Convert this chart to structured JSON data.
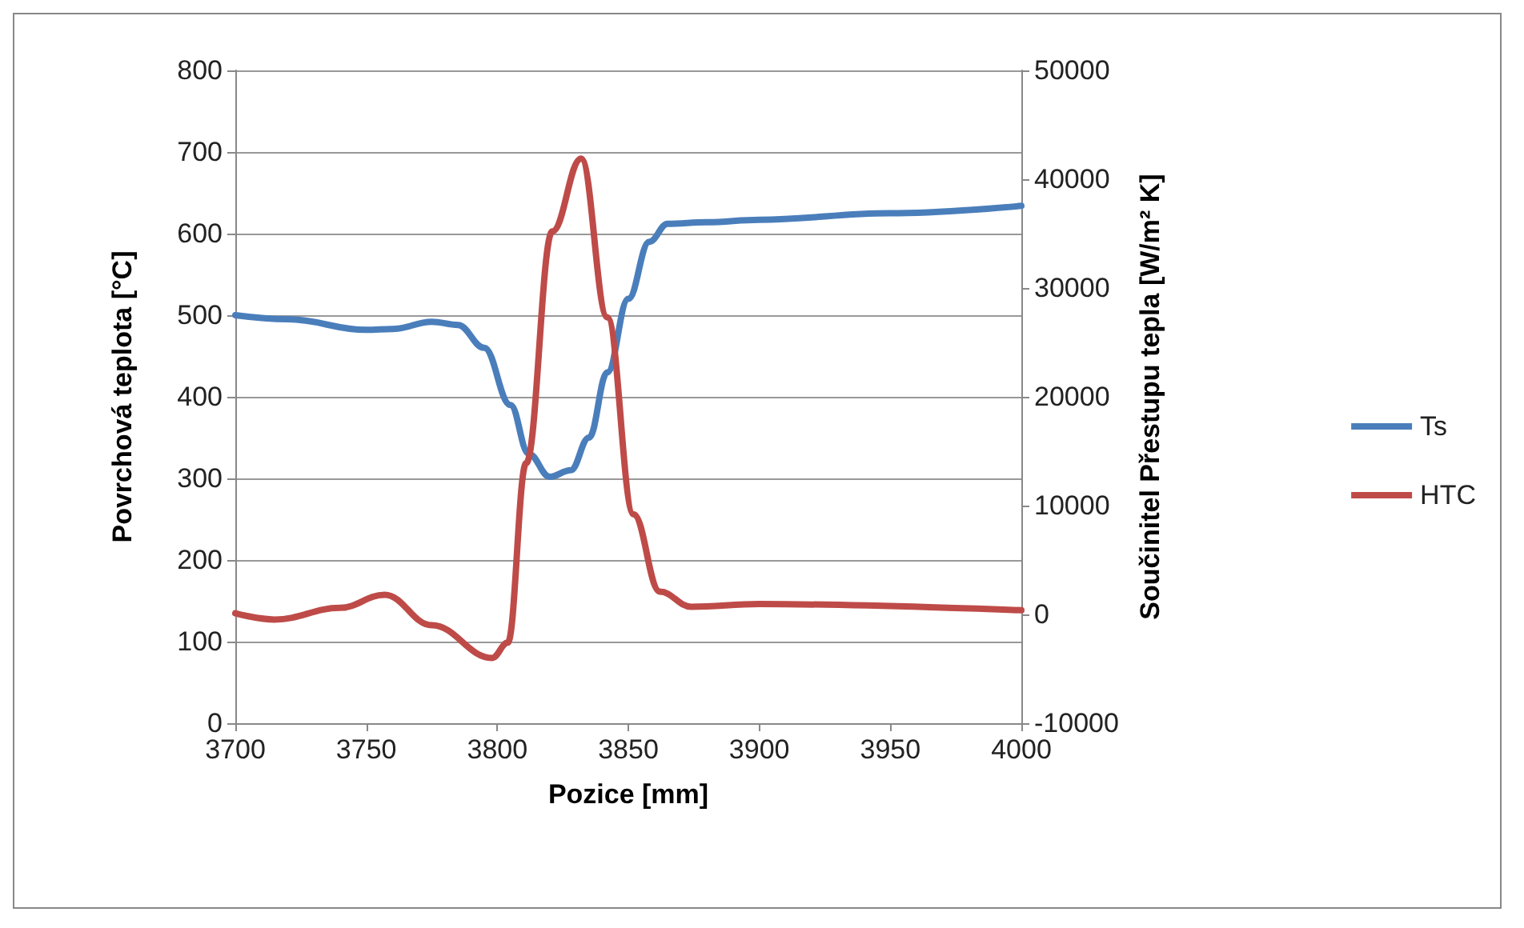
{
  "chart_data": {
    "type": "line",
    "xlabel": "Pozice [mm]",
    "ylabel": "Povrchová teplota [°C]",
    "y2label": "Součinitel Přestupu tepla [W/m² K]",
    "xlim": [
      3700,
      4000
    ],
    "xticks": [
      3700,
      3750,
      3800,
      3850,
      3900,
      3950,
      4000
    ],
    "ylim": [
      0,
      800
    ],
    "yticks": [
      0,
      100,
      200,
      300,
      400,
      500,
      600,
      700,
      800
    ],
    "y2lim": [
      -10000,
      50000
    ],
    "y2ticks": [
      -10000,
      0,
      10000,
      20000,
      30000,
      40000,
      50000
    ],
    "grid": "y",
    "legend": "right",
    "marker": "none",
    "line_style": "solid",
    "series": [
      {
        "name": "Ts",
        "color": "#4a7ebb",
        "x": [
          3700,
          3720,
          3750,
          3760,
          3775,
          3785,
          3795,
          3805,
          3812,
          3820,
          3828,
          3835,
          3842,
          3850,
          3858,
          3865,
          3880,
          3900,
          3950,
          4000
        ],
        "values": [
          500,
          495,
          482,
          483,
          492,
          488,
          460,
          390,
          330,
          302,
          310,
          350,
          430,
          520,
          590,
          612,
          614,
          617,
          625,
          634
        ]
      },
      {
        "name": "HTC",
        "color": "#be4b48",
        "axis": "y2",
        "x": [
          3700,
          3715,
          3740,
          3757,
          3775,
          3798,
          3804,
          3811,
          3821,
          3832,
          3842,
          3852,
          3862,
          3874,
          3900,
          4000
        ],
        "values": [
          100,
          -470,
          600,
          1800,
          -1000,
          -4000,
          -2600,
          13900,
          35200,
          41900,
          27300,
          9200,
          2100,
          700,
          950,
          380
        ]
      }
    ]
  }
}
